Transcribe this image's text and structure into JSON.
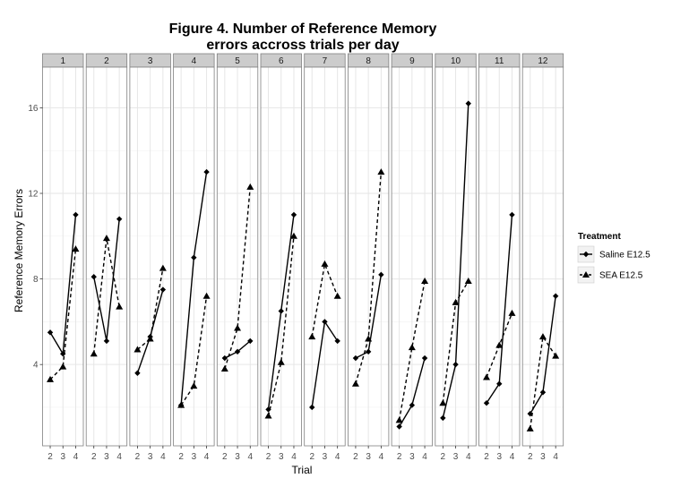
{
  "chart_data": {
    "type": "line",
    "title": "Figure 4. Number of Reference Memory errors accross trials per day",
    "title_lines": [
      "Figure 4. Number of Reference Memory",
      "errors accross trials per day"
    ],
    "xlabel": "Trial",
    "ylabel": "Reference Memory Errors",
    "x": [
      2,
      3,
      4
    ],
    "x_tick_labels": [
      "2",
      "3",
      "4"
    ],
    "y_ticks": [
      4,
      8,
      12,
      16
    ],
    "ylim": [
      0.2,
      17.9
    ],
    "grid": true,
    "legend": {
      "title": "Treatment",
      "position": "right",
      "entries": [
        "Saline E12.5",
        "SEA E12.5"
      ]
    },
    "panels": [
      {
        "label": "1",
        "saline": [
          5.5,
          4.5,
          11.0
        ],
        "sea": [
          3.3,
          3.9,
          9.4
        ]
      },
      {
        "label": "2",
        "saline": [
          8.1,
          5.1,
          10.8
        ],
        "sea": [
          4.5,
          9.9,
          6.7
        ]
      },
      {
        "label": "3",
        "saline": [
          3.6,
          5.3,
          7.5
        ],
        "sea": [
          4.7,
          5.2,
          8.5
        ]
      },
      {
        "label": "4",
        "saline": [
          2.1,
          9.0,
          13.0
        ],
        "sea": [
          2.1,
          3.0,
          7.2
        ]
      },
      {
        "label": "5",
        "saline": [
          4.3,
          4.6,
          5.1
        ],
        "sea": [
          3.8,
          5.7,
          12.3
        ]
      },
      {
        "label": "6",
        "saline": [
          1.9,
          6.5,
          11.0
        ],
        "sea": [
          1.6,
          4.1,
          10.0
        ]
      },
      {
        "label": "7",
        "saline": [
          2.0,
          6.0,
          5.1
        ],
        "sea": [
          5.3,
          8.7,
          7.2
        ]
      },
      {
        "label": "8",
        "saline": [
          4.3,
          4.6,
          8.2
        ],
        "sea": [
          3.1,
          5.2,
          13.0
        ]
      },
      {
        "label": "9",
        "saline": [
          1.1,
          2.1,
          4.3
        ],
        "sea": [
          1.4,
          4.8,
          7.9
        ]
      },
      {
        "label": "10",
        "saline": [
          1.5,
          4.0,
          16.2
        ],
        "sea": [
          2.2,
          6.9,
          7.9
        ]
      },
      {
        "label": "11",
        "saline": [
          2.2,
          3.1,
          11.0
        ],
        "sea": [
          3.4,
          4.9,
          6.4
        ]
      },
      {
        "label": "12",
        "saline": [
          1.7,
          2.7,
          7.2
        ],
        "sea": [
          1.0,
          5.3,
          4.4
        ]
      }
    ],
    "series": [
      {
        "name": "Saline E12.5",
        "line": "solid",
        "marker": "diamond"
      },
      {
        "name": "SEA E12.5",
        "line": "dashed",
        "marker": "triangle"
      }
    ],
    "colors": {
      "panel_background": "#ffffff",
      "strip_background": "#cccccc",
      "grid_major": "#e6e6e6",
      "grid_minor": "#f2f2f2",
      "line": "#000000",
      "border": "#7f7f7f"
    }
  }
}
